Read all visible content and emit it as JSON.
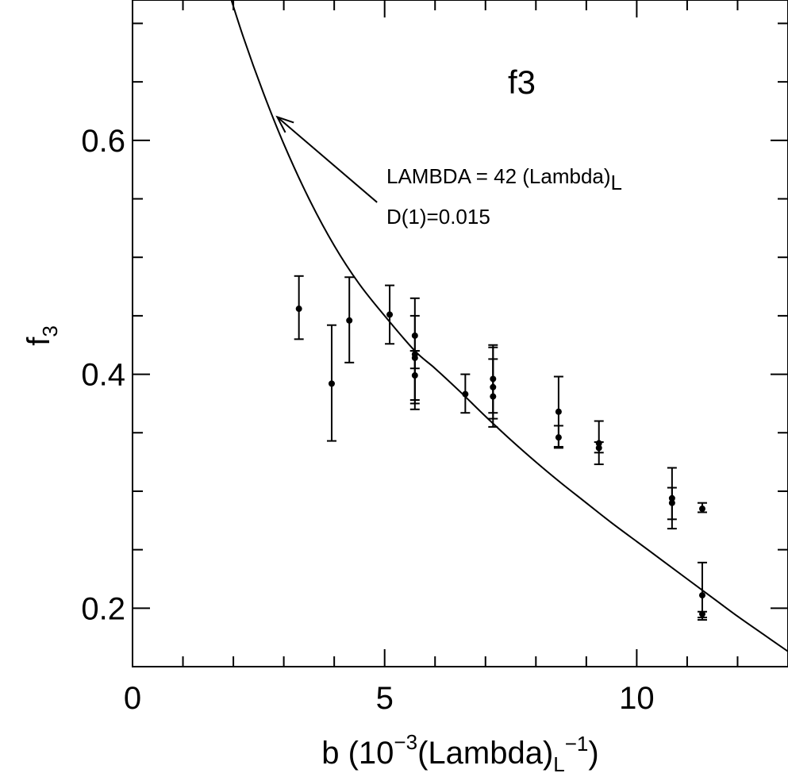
{
  "chart_data": {
    "type": "scatter",
    "title": "f3",
    "xlabel": {
      "prefix": "b (10",
      "exp": "−3",
      "mid": "(Lambda)",
      "sub": "L",
      "exp2": "−1",
      "suffix": ")"
    },
    "ylabel": {
      "main": "f",
      "sub": "3"
    },
    "xlim": [
      0,
      13
    ],
    "ylim": [
      0.15,
      0.72
    ],
    "x_ticks": [
      0,
      5,
      10
    ],
    "x_tick_labels": [
      "0",
      "5",
      "10"
    ],
    "y_ticks": [
      0.2,
      0.4,
      0.6
    ],
    "y_tick_labels": [
      "0.2",
      "0.4",
      "0.6"
    ],
    "x_minor_step": 1,
    "y_minor_step": 0.05,
    "grid": false,
    "annotation": {
      "line1_main": "LAMBDA = 42 (Lambda)",
      "line1_sub": "L",
      "line2": "D(1)=0.015",
      "arrow_from": [
        4.85,
        0.547
      ],
      "arrow_to": [
        2.87,
        0.62
      ]
    },
    "series": [
      {
        "type": "points_with_error",
        "points": [
          {
            "x": 3.3,
            "y": 0.456,
            "lo": 0.43,
            "hi": 0.484
          },
          {
            "x": 3.95,
            "y": 0.392,
            "lo": 0.343,
            "hi": 0.442
          },
          {
            "x": 4.3,
            "y": 0.446,
            "lo": 0.41,
            "hi": 0.483
          },
          {
            "x": 5.1,
            "y": 0.451,
            "lo": 0.426,
            "hi": 0.476
          },
          {
            "x": 5.6,
            "y": 0.433,
            "lo": 0.378,
            "hi": 0.465
          },
          {
            "x": 5.6,
            "y": 0.417,
            "lo": 0.37,
            "hi": 0.45
          },
          {
            "x": 5.6,
            "y": 0.414,
            "lo": 0.405,
            "hi": 0.42
          },
          {
            "x": 5.6,
            "y": 0.399,
            "lo": 0.375,
            "hi": 0.42
          },
          {
            "x": 6.6,
            "y": 0.383,
            "lo": 0.367,
            "hi": 0.4
          },
          {
            "x": 7.15,
            "y": 0.396,
            "lo": 0.367,
            "hi": 0.425
          },
          {
            "x": 7.15,
            "y": 0.389,
            "lo": 0.355,
            "hi": 0.423
          },
          {
            "x": 7.15,
            "y": 0.381,
            "lo": 0.362,
            "hi": 0.413
          },
          {
            "x": 8.45,
            "y": 0.368,
            "lo": 0.338,
            "hi": 0.398
          },
          {
            "x": 8.45,
            "y": 0.346,
            "lo": 0.337,
            "hi": 0.356
          },
          {
            "x": 9.25,
            "y": 0.341,
            "lo": 0.323,
            "hi": 0.36
          },
          {
            "x": 9.25,
            "y": 0.337,
            "lo": 0.333,
            "hi": 0.342
          },
          {
            "x": 10.7,
            "y": 0.294,
            "lo": 0.268,
            "hi": 0.32
          },
          {
            "x": 10.7,
            "y": 0.29,
            "lo": 0.276,
            "hi": 0.303
          },
          {
            "x": 11.3,
            "y": 0.285,
            "lo": 0.282,
            "hi": 0.29
          },
          {
            "x": 11.3,
            "y": 0.211,
            "lo": 0.19,
            "hi": 0.239
          },
          {
            "x": 11.3,
            "y": 0.195,
            "lo": 0.192,
            "hi": 0.197
          }
        ]
      },
      {
        "type": "curve",
        "x": [
          1.85,
          2.2,
          2.6,
          3.0,
          3.5,
          4.0,
          4.5,
          5.0,
          5.6,
          6.0,
          6.5,
          7.0,
          7.5,
          8.0,
          8.5,
          9.0,
          9.5,
          10.0,
          10.5,
          11.0,
          11.5,
          12.0,
          12.5,
          13.0
        ],
        "y": [
          0.735,
          0.688,
          0.64,
          0.597,
          0.55,
          0.51,
          0.477,
          0.45,
          0.42,
          0.405,
          0.385,
          0.364,
          0.344,
          0.325,
          0.307,
          0.29,
          0.273,
          0.257,
          0.241,
          0.225,
          0.209,
          0.193,
          0.178,
          0.163
        ]
      }
    ]
  }
}
